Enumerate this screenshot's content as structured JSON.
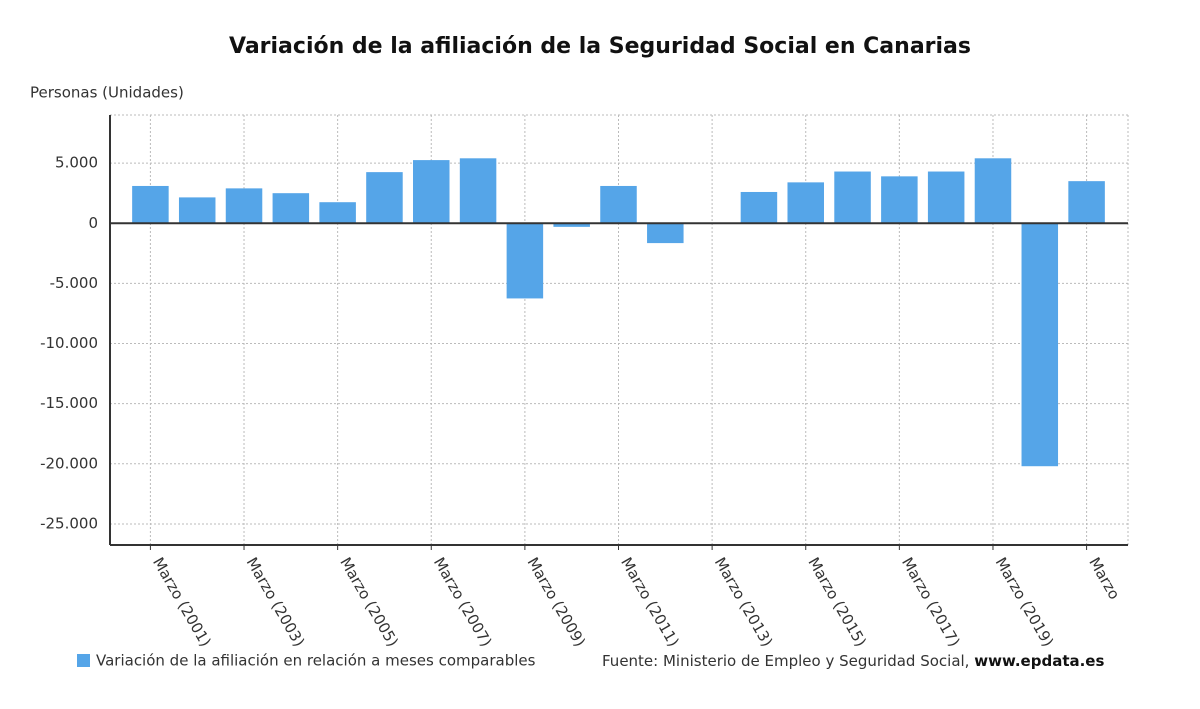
{
  "chart_data": {
    "type": "bar",
    "title": "Variación de la afiliación de la Seguridad Social en Canarias",
    "y_label": "Personas (Unidades)",
    "categories": [
      "Marzo (2001)",
      null,
      "Marzo (2003)",
      null,
      "Marzo (2005)",
      null,
      "Marzo (2007)",
      null,
      "Marzo (2009)",
      null,
      "Marzo (2011)",
      null,
      "Marzo (2013)",
      null,
      "Marzo (2015)",
      null,
      "Marzo (2017)",
      null,
      "Marzo (2019)",
      null,
      "Marzo"
    ],
    "series": [
      {
        "name": "Variación de la afiliación en relación a meses comparables",
        "color": "#55a5e8",
        "values": [
          3100,
          2150,
          2900,
          2500,
          1750,
          4250,
          5250,
          5400,
          -6250,
          -300,
          3100,
          -1650,
          0,
          2600,
          3400,
          4300,
          3900,
          4300,
          5400,
          -20200,
          3500
        ]
      }
    ],
    "ylim": [
      -26750,
      9000
    ],
    "yticks": [
      {
        "value": -25000,
        "label": "-25.000"
      },
      {
        "value": -20000,
        "label": "-20.000"
      },
      {
        "value": -15000,
        "label": "-15.000"
      },
      {
        "value": -10000,
        "label": "-10.000"
      },
      {
        "value": -5000,
        "label": "-5.000"
      },
      0,
      {
        "value": 5000,
        "label": "5.000"
      }
    ],
    "grid": true,
    "source": "Fuente: Ministerio de Empleo y Seguridad Social,",
    "source_link": "www.epdata.es"
  }
}
